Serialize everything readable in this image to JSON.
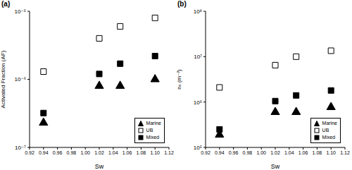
{
  "chart_data": [
    {
      "type": "scatter",
      "title": "(a)",
      "x_label": "Sw",
      "y_label": "Activated Fraction (AF)",
      "log": "y",
      "grid": false,
      "legend": "lower right",
      "xlim": [
        0.92,
        1.12
      ],
      "xticks": [
        0.92,
        0.94,
        0.96,
        0.98,
        {
          "value": 1.0,
          "label": "1.00"
        },
        1.02,
        1.04,
        1.06,
        1.08,
        {
          "value": 1.1,
          "label": "1.10"
        },
        1.12
      ],
      "ylim": [
        1e-07,
        1e-05
      ],
      "yticks": [
        {
          "value": 1e-07,
          "label": "10⁻⁷"
        },
        {
          "value": 1e-06,
          "label": "10⁻⁶"
        },
        {
          "value": 1e-05,
          "label": "10⁻⁵"
        }
      ],
      "series": [
        {
          "name": "Marine",
          "color": "#000000",
          "marker": "triangle",
          "x": [
            0.94,
            1.02,
            1.05,
            1.1
          ],
          "values": [
            2.3e-07,
            8e-07,
            8e-07,
            1e-06
          ]
        },
        {
          "name": "UB",
          "color": "#000000",
          "marker": "open_square",
          "x": [
            0.94,
            1.02,
            1.05,
            1.1
          ],
          "values": [
            1.3e-06,
            4e-06,
            6e-06,
            8e-06
          ]
        },
        {
          "name": "Mixed",
          "color": "#000000",
          "marker": "square",
          "x": [
            0.94,
            1.02,
            1.05,
            1.1
          ],
          "values": [
            3.2e-07,
            1.2e-06,
            1.7e-06,
            2.2e-06
          ]
        }
      ]
    },
    {
      "type": "scatter",
      "title": "(b)",
      "x_label": "Sw",
      "y_label": "nₛ (m⁻²)",
      "log": "y",
      "grid": false,
      "legend": "lower right",
      "xlim": [
        0.92,
        1.12
      ],
      "xticks": [
        0.92,
        0.94,
        0.96,
        0.98,
        {
          "value": 1.0,
          "label": "1.00"
        },
        1.02,
        1.04,
        1.06,
        1.08,
        {
          "value": 1.1,
          "label": "1.10"
        },
        1.12
      ],
      "ylim": [
        100000,
        100000000
      ],
      "yticks": [
        {
          "value": 100000,
          "label": "10⁵"
        },
        {
          "value": 1000000,
          "label": "10⁶"
        },
        {
          "value": 10000000,
          "label": "10⁷"
        },
        {
          "value": 100000000,
          "label": "10⁸"
        }
      ],
      "series": [
        {
          "name": "Marine",
          "color": "#000000",
          "marker": "triangle",
          "x": [
            0.94,
            1.02,
            1.05,
            1.1
          ],
          "values": [
            190000,
            600000,
            600000,
            770000
          ]
        },
        {
          "name": "UB",
          "color": "#000000",
          "marker": "open_square",
          "x": [
            0.94,
            1.02,
            1.05,
            1.1
          ],
          "values": [
            2100000,
            6500000,
            10000000,
            13500000
          ]
        },
        {
          "name": "Mixed",
          "color": "#000000",
          "marker": "square",
          "x": [
            0.94,
            1.02,
            1.05,
            1.1
          ],
          "values": [
            250000,
            1050000,
            1400000,
            1800000
          ]
        }
      ]
    }
  ]
}
